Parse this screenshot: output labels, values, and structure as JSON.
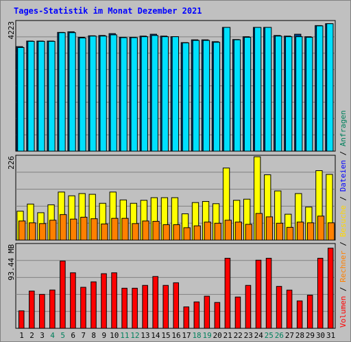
{
  "chart_data": {
    "type": "bar",
    "title": "Tages-Statistik im Monat Dezember 2021",
    "categories": [
      "1",
      "2",
      "3",
      "4",
      "5",
      "6",
      "7",
      "8",
      "9",
      "10",
      "11",
      "12",
      "13",
      "14",
      "15",
      "16",
      "17",
      "18",
      "19",
      "20",
      "21",
      "22",
      "23",
      "24",
      "25",
      "26",
      "27",
      "28",
      "29",
      "30",
      "31"
    ],
    "weekend_days": [
      "4",
      "5",
      "11",
      "12",
      "18",
      "19",
      "25",
      "26"
    ],
    "panels": [
      {
        "id": "requests",
        "ymax_label": "4223",
        "ymax": 4223,
        "series": [
          {
            "name": "Anfragen",
            "color": "#00e0ff",
            "values": [
              3350,
              3550,
              3550,
              3550,
              3830,
              3830,
              3660,
              3720,
              3720,
              3760,
              3670,
              3670,
              3700,
              3740,
              3700,
              3700,
              3500,
              3580,
              3580,
              3520,
              4000,
              3600,
              3680,
              4000,
              4000,
              3720,
              3700,
              3700,
              3680,
              4050,
              4120
            ]
          },
          {
            "name": "Dateien",
            "color": "#0000ff",
            "values": [
              3380,
              3560,
              3560,
              3560,
              3840,
              3860,
              3680,
              3730,
              3740,
              3800,
              3680,
              3680,
              3720,
              3780,
              3720,
              3700,
              3510,
              3600,
              3600,
              3540,
              4000,
              3610,
              3700,
              4000,
              4000,
              3740,
              3720,
              3780,
              3700,
              4060,
              4120
            ]
          }
        ]
      },
      {
        "id": "pages",
        "ymax_label": "226",
        "ymax": 226,
        "series": [
          {
            "name": "Besuche",
            "color": "#ffff00",
            "values": [
              77,
              96,
              73,
              94,
              128,
              118,
              124,
              122,
              98,
              128,
              107,
              98,
              106,
              113,
              113,
              113,
              70,
              100,
              103,
              97,
              192,
              106,
              109,
              222,
              174,
              131,
              69,
              124,
              88,
              185,
              175
            ]
          },
          {
            "name": "Rechner",
            "color": "#ff8000",
            "values": [
              51,
              46,
              44,
              53,
              68,
              56,
              61,
              57,
              43,
              58,
              58,
              44,
              51,
              50,
              41,
              41,
              33,
              38,
              48,
              45,
              53,
              48,
              42,
              71,
              62,
              45,
              34,
              48,
              46,
              64,
              46
            ]
          }
        ]
      },
      {
        "id": "volume",
        "ymax_label": "93.44 MB",
        "ymax": 93.44,
        "series": [
          {
            "name": "Volumen",
            "color": "#ff0000",
            "values": [
              19.3,
              41.1,
              37.4,
              42.2,
              74.1,
              61.2,
              45.2,
              51.2,
              60.2,
              61.2,
              44.2,
              44.2,
              47.3,
              57.1,
              47.3,
              50.2,
              23.6,
              29.1,
              35.4,
              28.5,
              77.2,
              34.5,
              47.3,
              75.1,
              77.2,
              46.2,
              42.1,
              30.2,
              36.5,
              77.2,
              88.3
            ]
          }
        ]
      }
    ],
    "right_labels": [
      {
        "text": "Anfragen",
        "color": "#00805c"
      },
      {
        "text": " / ",
        "color": "#000000"
      },
      {
        "text": "Dateien",
        "color": "#0000ff"
      },
      {
        "text": " / ",
        "color": "#000000"
      },
      {
        "text": "Besuche",
        "color": "#ffd700"
      },
      {
        "text": " / ",
        "color": "#000000"
      },
      {
        "text": "Rechner",
        "color": "#ff8000"
      },
      {
        "text": " / ",
        "color": "#000000"
      },
      {
        "text": "Volumen",
        "color": "#ff0000"
      }
    ],
    "colors": {
      "background": "#c0c0c0",
      "panel": "#c0c0c0",
      "gridline": "#808080",
      "title": "#0000ff",
      "weekday_label": "#000000",
      "weekend_label": "#00805c"
    }
  }
}
